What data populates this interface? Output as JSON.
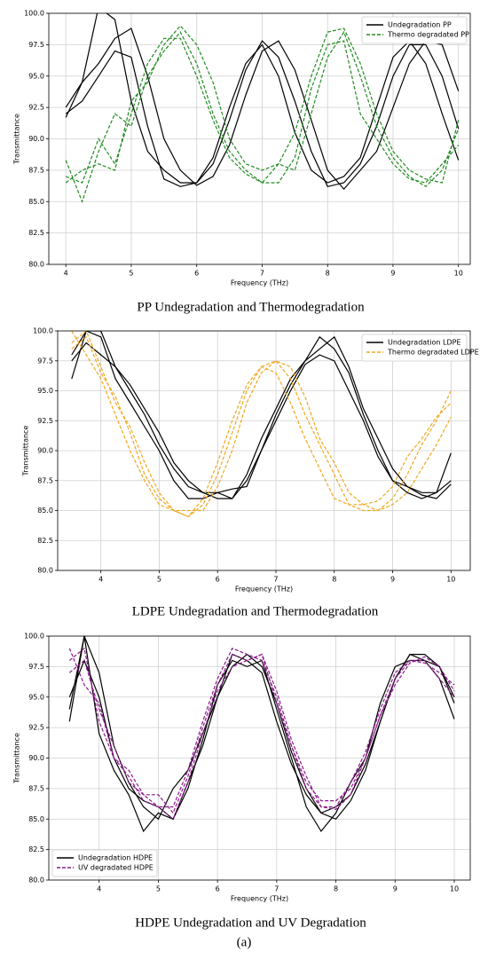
{
  "chart_data": [
    {
      "type": "line",
      "caption": "PP Undegradation and Thermodegradation",
      "xlabel": "Frequency (THz)",
      "ylabel": "Transmittance",
      "xlim": [
        3.74,
        10.18
      ],
      "ylim": [
        80,
        100
      ],
      "xticks": [
        4,
        5,
        6,
        7,
        8,
        9,
        10
      ],
      "yticks": [
        {
          "value": 80,
          "label": "80.0"
        },
        82.5,
        {
          "value": 85,
          "label": "85.0"
        },
        87.5,
        {
          "value": 90,
          "label": "90.0"
        },
        92.5,
        {
          "value": 95,
          "label": "95.0"
        },
        97.5,
        {
          "value": 100,
          "label": "100.0"
        }
      ],
      "grid": true,
      "legend": "upper right",
      "x": [
        4,
        4.25,
        4.5,
        4.75,
        5,
        5.25,
        5.5,
        5.75,
        6,
        6.25,
        6.5,
        6.75,
        7,
        7.25,
        7.5,
        7.75,
        8,
        8.25,
        8.5,
        8.75,
        9,
        9.25,
        9.5,
        9.75,
        10
      ],
      "series": [
        {
          "name": "Undegradation PP",
          "color": "#000000",
          "dashed": false,
          "values": [
            [
              91.7,
              94.5,
              100.5,
              99.5,
              93,
              89,
              87.5,
              86.5,
              86.5,
              88,
              91.5,
              95.5,
              97.8,
              96.5,
              93,
              89,
              86.2,
              86.5,
              88,
              91,
              95,
              97.5,
              97.5,
              95,
              90.8
            ],
            [
              92.5,
              94.5,
              96,
              98,
              98.8,
              95,
              90,
              87.5,
              86.3,
              87,
              89.5,
              93.5,
              97,
              97.8,
              95.5,
              91.5,
              87.5,
              86,
              87.5,
              89,
              92.5,
              96,
              97.8,
              97.5,
              93.8
            ],
            [
              92,
              93,
              95,
              97,
              96.5,
              91,
              86.8,
              86.2,
              86.5,
              88.5,
              92.5,
              96,
              97.5,
              95,
              90.5,
              87.5,
              86.5,
              87,
              88.5,
              92.5,
              96.5,
              97.8,
              96,
              92,
              88.3
            ]
          ]
        },
        {
          "name": "Thermo degradated PP",
          "color": "#228b22",
          "dashed": true,
          "values": [
            [
              88.3,
              85,
              89,
              92,
              91,
              95,
              97,
              98.5,
              96,
              92,
              89,
              87.5,
              86.5,
              88,
              87.5,
              92,
              96.5,
              98.5,
              95,
              91,
              88.5,
              87,
              86.2,
              87.5,
              90.8
            ],
            [
              87,
              86.5,
              90,
              88,
              92,
              96,
              98,
              98,
              95,
              91.5,
              88.5,
              87.2,
              86.5,
              86.5,
              88.5,
              94,
              97.5,
              97.8,
              92,
              90,
              88,
              86.8,
              86.5,
              88,
              89.5
            ],
            [
              86.5,
              87.5,
              88,
              87.5,
              93,
              94.5,
              97.5,
              99,
              97.5,
              94.5,
              90,
              88,
              87.5,
              88,
              90.5,
              95,
              98.5,
              98.8,
              96,
              92,
              89,
              87.5,
              86.8,
              86.5,
              91.5
            ]
          ]
        }
      ]
    },
    {
      "type": "line",
      "caption": "LDPE Undegradation and Thermodegradation",
      "xlabel": "Frequency (THz)",
      "ylabel": "Transmittance",
      "xlim": [
        3.26,
        10.33
      ],
      "ylim": [
        80,
        100
      ],
      "xticks": [
        4,
        5,
        6,
        7,
        8,
        9,
        10
      ],
      "yticks": [
        {
          "value": 80,
          "label": "80.0"
        },
        82.5,
        {
          "value": 85,
          "label": "85.0"
        },
        87.5,
        {
          "value": 90,
          "label": "90.0"
        },
        92.5,
        {
          "value": 95,
          "label": "95.0"
        },
        97.5,
        {
          "value": 100,
          "label": "100.0"
        }
      ],
      "grid": true,
      "legend": "upper right",
      "x": [
        3.5,
        3.75,
        4,
        4.25,
        4.5,
        4.75,
        5,
        5.25,
        5.5,
        5.75,
        6,
        6.25,
        6.5,
        6.75,
        7,
        7.25,
        7.5,
        7.75,
        8,
        8.25,
        8.5,
        8.75,
        9,
        9.25,
        9.5,
        9.75,
        10
      ],
      "series": [
        {
          "name": "Undegradation LDPE",
          "color": "#000000",
          "dashed": false,
          "values": [
            [
              96,
              100,
              99.5,
              96,
              94,
              92,
              90,
              87.5,
              86,
              86,
              86.5,
              86,
              87.5,
              90,
              93,
              95.5,
              97.5,
              98.5,
              99.5,
              97,
              93.5,
              91,
              88.5,
              87,
              86.5,
              86.5,
              87.5
            ],
            [
              98,
              100,
              100,
              97,
              95.5,
              93.5,
              91.5,
              89,
              87.5,
              86.5,
              86,
              86,
              88,
              91,
              93.5,
              96,
              97.5,
              99.5,
              98.5,
              96.5,
              93,
              90,
              87.5,
              86.5,
              86,
              86.5,
              89.8
            ],
            [
              97.5,
              99,
              98,
              97,
              95,
              93,
              90.5,
              88.5,
              87,
              86.5,
              86.5,
              86.8,
              87,
              90,
              92.5,
              95,
              97.2,
              98,
              97.5,
              95,
              92.5,
              89.5,
              87.5,
              87,
              86.3,
              86,
              87.2
            ]
          ]
        },
        {
          "name": "Thermo degradated LDPE",
          "color": "#f0a820",
          "dashed": true,
          "values": [
            [
              99,
              100,
              97,
              94,
              92,
              89,
              86.5,
              85,
              84.5,
              85.5,
              88,
              91.5,
              95,
              97,
              97.5,
              96,
              93,
              90.5,
              88,
              85.5,
              85,
              85,
              86,
              88,
              90.5,
              92.5,
              95
            ],
            [
              98.5,
              99.5,
              96.5,
              94.5,
              91.5,
              88,
              86,
              85,
              85,
              85,
              87,
              90,
              94,
              96.5,
              97.5,
              97,
              94.5,
              91,
              89,
              86.5,
              85.5,
              85,
              85.5,
              86.5,
              88.5,
              90.5,
              92.8
            ],
            [
              100,
              98,
              96,
              93,
              90,
              87.5,
              85.5,
              85,
              84.5,
              86,
              89,
              92.5,
              95.5,
              97,
              96.5,
              94,
              91,
              88.5,
              86,
              85.5,
              85.5,
              85.8,
              87,
              89.5,
              91,
              92.8,
              94
            ]
          ]
        }
      ]
    },
    {
      "type": "line",
      "caption": "HDPE Undegradation and UV Degradation",
      "xlabel": "Frequency (THz)",
      "ylabel": "Transmittance",
      "xlim": [
        3.15,
        10.27
      ],
      "ylim": [
        80,
        100
      ],
      "xticks": [
        4,
        5,
        6,
        7,
        8,
        9,
        10
      ],
      "yticks": [
        {
          "value": 80,
          "label": "80.0"
        },
        82.5,
        {
          "value": 85,
          "label": "85.0"
        },
        87.5,
        {
          "value": 90,
          "label": "90.0"
        },
        92.5,
        {
          "value": 95,
          "label": "95.0"
        },
        97.5,
        {
          "value": 100,
          "label": "100.0"
        }
      ],
      "grid": true,
      "legend": "lower left",
      "x": [
        3.5,
        3.75,
        4,
        4.25,
        4.5,
        4.75,
        5,
        5.25,
        5.5,
        5.75,
        6,
        6.25,
        6.5,
        6.75,
        7,
        7.25,
        7.5,
        7.75,
        8,
        8.25,
        8.5,
        8.75,
        9,
        9.25,
        9.5,
        9.75,
        10
      ],
      "series": [
        {
          "name": "Undegradation HDPE",
          "color": "#000000",
          "dashed": false,
          "values": [
            [
              93,
              100,
              92,
              89,
              87,
              84,
              85.5,
              85,
              88,
              91,
              95,
              98.5,
              98,
              97,
              93,
              89.5,
              87,
              85.5,
              85,
              86.5,
              89,
              93,
              96.5,
              98.5,
              98,
              96.5,
              93.2
            ],
            [
              95,
              98,
              95,
              90,
              87.5,
              86.5,
              86,
              85,
              87.5,
              91.5,
              96,
              98,
              97.5,
              98,
              94,
              90,
              86,
              84,
              85.5,
              88,
              90,
              94.5,
              97.5,
              98,
              98,
              97.5,
              94.5
            ],
            [
              94,
              100,
              97,
              91,
              88,
              86,
              85,
              87.5,
              89,
              92,
              95,
              97.5,
              98.5,
              97.5,
              94.5,
              90.5,
              87.5,
              85.5,
              86,
              87,
              89.5,
              93,
              96.5,
              98.5,
              98.5,
              97.5,
              95
            ]
          ]
        },
        {
          "name": "UV degradated HDPE",
          "color": "#8b1a8b",
          "dashed": true,
          "values": [
            [
              98,
              99,
              93,
              90,
              88.5,
              86.5,
              86,
              86,
              89,
              93,
              96.5,
              99,
              98.5,
              98,
              95,
              91,
              88,
              86.5,
              86.5,
              87.5,
              90,
              93.5,
              96.5,
              98,
              98,
              96.5,
              95
            ],
            [
              97,
              98,
              94,
              91,
              88,
              87,
              86,
              85,
              88,
              92,
              95.5,
              97.5,
              98,
              98.5,
              95.5,
              91.5,
              88.5,
              86,
              85.8,
              87,
              90,
              93.5,
              96,
              97.8,
              98.3,
              97.5,
              95.5
            ],
            [
              99,
              96,
              94.5,
              90,
              89,
              87,
              87,
              85.5,
              88.5,
              92.5,
              96,
              98.5,
              98,
              98.5,
              94.5,
              91,
              87.5,
              86,
              86,
              88,
              90.5,
              94,
              97,
              98,
              97.8,
              97,
              96
            ]
          ]
        }
      ]
    }
  ],
  "label": "(a)"
}
